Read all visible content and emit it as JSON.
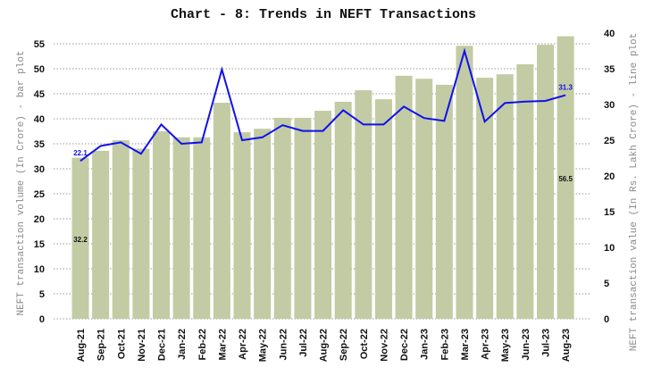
{
  "chart_data": {
    "type": "bar+line",
    "title": "Chart - 8: Trends in NEFT Transactions",
    "categories": [
      "Aug-21",
      "Sep-21",
      "Oct-21",
      "Nov-21",
      "Dec-21",
      "Jan-22",
      "Feb-22",
      "Mar-22",
      "Apr-22",
      "May-22",
      "Jun-22",
      "Jul-22",
      "Aug-22",
      "Sep-22",
      "Oct-22",
      "Nov-22",
      "Dec-22",
      "Jan-23",
      "Feb-23",
      "Mar-23",
      "Apr-23",
      "May-23",
      "Jun-23",
      "Jul-23",
      "Aug-23"
    ],
    "series": [
      {
        "type": "bar",
        "axis": "left",
        "color": "#c2cba3",
        "values": [
          32.2,
          33.6,
          35.7,
          34.0,
          37.5,
          36.3,
          36.3,
          43.2,
          37.3,
          38.0,
          40.2,
          40.2,
          41.6,
          43.4,
          45.7,
          43.9,
          48.6,
          48.0,
          46.8,
          54.6,
          48.2,
          48.9,
          50.9,
          54.8,
          56.5
        ]
      },
      {
        "type": "line",
        "axis": "right",
        "color": "#1010ee",
        "values": [
          22.1,
          24.2,
          24.7,
          23.1,
          27.2,
          24.5,
          24.7,
          34.9,
          25.0,
          25.4,
          27.1,
          26.3,
          26.3,
          29.2,
          27.2,
          27.2,
          29.7,
          28.1,
          27.7,
          37.5,
          27.6,
          30.2,
          30.4,
          30.5,
          31.3
        ]
      }
    ],
    "data_labels": [
      {
        "series": 0,
        "index": 0,
        "text": "32.2"
      },
      {
        "series": 0,
        "index": 24,
        "text": "56.5"
      },
      {
        "series": 1,
        "index": 0,
        "text": "22.1"
      },
      {
        "series": 1,
        "index": 24,
        "text": "31.3"
      }
    ],
    "ylabel": "NEFT transaction volume (In Crore) - bar plot",
    "y2label": "NEFT transaction value (In Rs. Lakh Crore) - line plot",
    "ylim": [
      0,
      55
    ],
    "yticks": [
      0,
      5,
      10,
      15,
      20,
      25,
      30,
      35,
      40,
      45,
      50,
      55
    ],
    "y2lim": [
      0,
      40
    ],
    "y2ticks": [
      0,
      5,
      10,
      15,
      20,
      25,
      30,
      35,
      40
    ],
    "grid": true,
    "legend": "none"
  }
}
